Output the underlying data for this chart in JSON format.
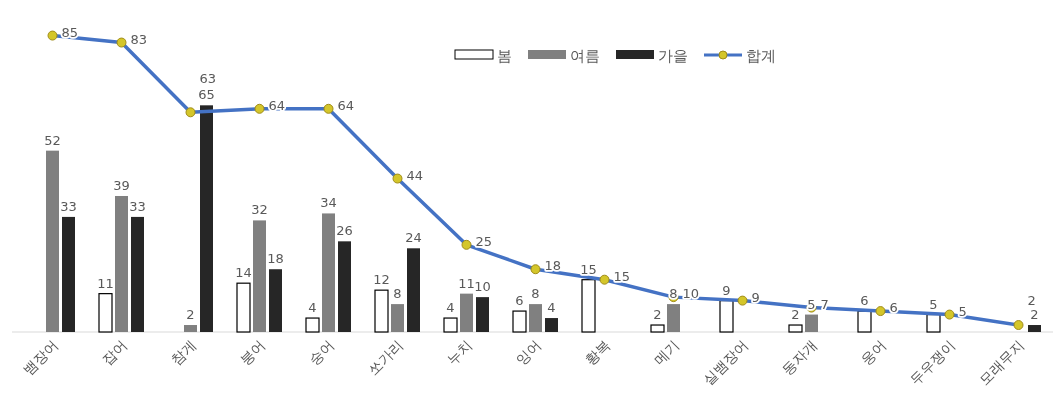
{
  "chart_data": {
    "type": "bar",
    "categories": [
      "뱀장어",
      "잡어",
      "참게",
      "붕어",
      "숭어",
      "쏘가리",
      "누치",
      "잉어",
      "황복",
      "메기",
      "실뱀장어",
      "동자개",
      "웅어",
      "두우쟁이",
      "모래무지"
    ],
    "series": [
      {
        "name": "봄",
        "color": "#ffffff",
        "values": [
          null,
          11,
          null,
          14,
          4,
          12,
          4,
          6,
          15,
          2,
          9,
          2,
          6,
          5,
          null
        ]
      },
      {
        "name": "여름",
        "color": "#808080",
        "values": [
          52,
          39,
          2,
          32,
          34,
          8,
          11,
          8,
          null,
          8,
          null,
          5,
          null,
          null,
          null
        ]
      },
      {
        "name": "가을",
        "color": "#262626",
        "values": [
          33,
          33,
          65,
          18,
          26,
          24,
          10,
          4,
          null,
          null,
          null,
          null,
          null,
          null,
          2
        ]
      },
      {
        "name": "합계",
        "type": "line",
        "color": "#4472c4",
        "values": [
          85,
          83,
          63,
          64,
          64,
          44,
          25,
          18,
          15,
          10,
          9,
          7,
          6,
          5,
          2
        ]
      }
    ],
    "data_labels": true,
    "legend": "top",
    "marker": "circle"
  }
}
